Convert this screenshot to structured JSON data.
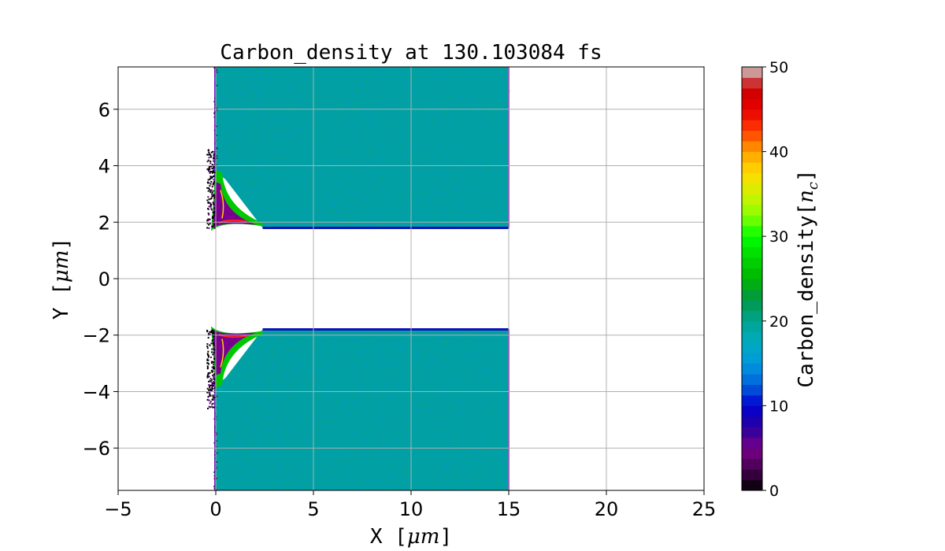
{
  "chart_data": {
    "type": "heatmap",
    "title": "Carbon_density at 130.103084 fs",
    "xlabel_text": "X  [",
    "xlabel_unit": "μm",
    "xlabel_end": "]",
    "ylabel_text": "Y  [",
    "ylabel_unit": "μm",
    "ylabel_end": "]",
    "xlim": [
      -5,
      25
    ],
    "ylim": [
      -7.5,
      7.5
    ],
    "xticks": [
      -5,
      0,
      5,
      10,
      15,
      20,
      25
    ],
    "xtick_labels": [
      "−5",
      "0",
      "5",
      "10",
      "15",
      "20",
      "25"
    ],
    "yticks": [
      -6,
      -4,
      -2,
      0,
      2,
      4,
      6
    ],
    "ytick_labels": [
      "−6",
      "−4",
      "−2",
      "0",
      "2",
      "4",
      "6"
    ],
    "grid": true,
    "colorbar": {
      "label_text": "Carbon_density[",
      "label_unit": "n",
      "label_sub": "c",
      "label_end": "]",
      "range": [
        0,
        50
      ],
      "ticks": [
        0,
        10,
        20,
        30,
        40,
        50
      ],
      "tick_labels": [
        "0",
        "10",
        "20",
        "30",
        "40",
        "50"
      ],
      "levels": 40,
      "colormap": "nipy_spectral"
    },
    "regions": [
      {
        "name": "upper slab",
        "x": [
          0,
          15
        ],
        "y": [
          1.8,
          7.5
        ],
        "density": 18
      },
      {
        "name": "lower slab",
        "x": [
          0,
          15
        ],
        "y": [
          -7.5,
          -1.8
        ],
        "density": 18
      }
    ],
    "colors": {
      "slab_fill": "#00a0a4",
      "slab_speckle": "#0098d0",
      "edge": "#1010b8",
      "grid": "#b0b0b0"
    }
  }
}
